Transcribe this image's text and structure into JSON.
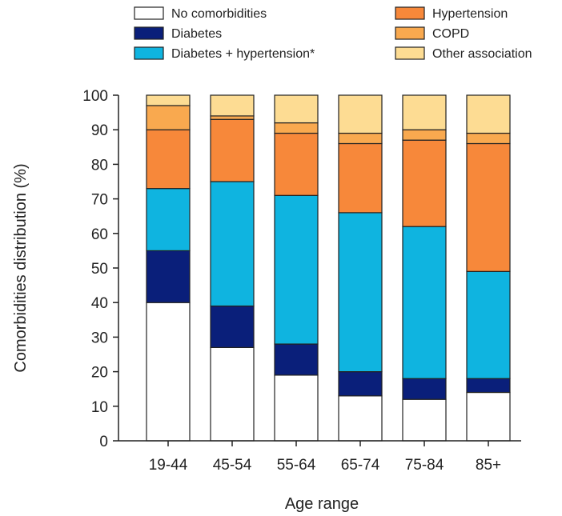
{
  "chart_data": {
    "type": "bar",
    "stacked": true,
    "xlabel": "Age range",
    "ylabel": "Comorbidities distribution (%)",
    "ylim": [
      0,
      100
    ],
    "yticks": [
      0,
      10,
      20,
      30,
      40,
      50,
      60,
      70,
      80,
      90,
      100
    ],
    "categories": [
      "19-44",
      "45-54",
      "55-64",
      "65-74",
      "75-84",
      "85+"
    ],
    "grid": false,
    "legend_position": "top",
    "series": [
      {
        "name": "No comorbidities",
        "color": "#ffffff",
        "values": [
          40,
          27,
          19,
          13,
          12,
          14
        ]
      },
      {
        "name": "Diabetes",
        "color": "#0a1f7a",
        "values": [
          15,
          12,
          9,
          7,
          6,
          4
        ]
      },
      {
        "name": "Diabetes + hypertension*",
        "color": "#0fb4e0",
        "values": [
          18,
          36,
          43,
          46,
          44,
          31
        ]
      },
      {
        "name": "Hypertension",
        "color": "#f7883a",
        "values": [
          17,
          18,
          18,
          20,
          25,
          37
        ]
      },
      {
        "name": "COPD",
        "color": "#f9a94f",
        "values": [
          7,
          1,
          3,
          3,
          3,
          3
        ]
      },
      {
        "name": "Other association",
        "color": "#fddc93",
        "values": [
          3,
          6,
          8,
          11,
          10,
          11
        ]
      }
    ]
  }
}
